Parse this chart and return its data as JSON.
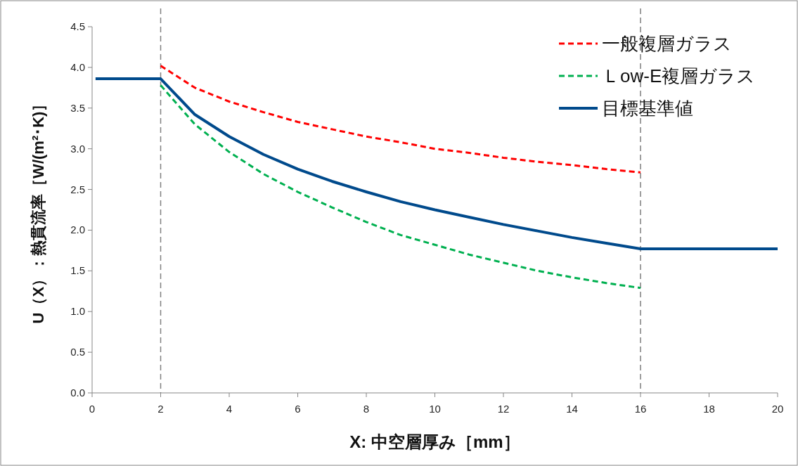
{
  "chart_data": {
    "type": "line",
    "xlabel": "X: 中空層厚み［mm］",
    "ylabel": "U（X）：熱貫流率［W/(m²･K)］",
    "xlim": [
      0,
      20
    ],
    "ylim": [
      0,
      4.5
    ],
    "xticks": [
      0,
      2,
      4,
      6,
      8,
      10,
      12,
      14,
      16,
      18,
      20
    ],
    "yticks": [
      {
        "value": 0,
        "label": "0.0"
      },
      {
        "value": 0.5,
        "label": "0.5"
      },
      {
        "value": 1,
        "label": "1.0"
      },
      {
        "value": 1.5,
        "label": "1.5"
      },
      {
        "value": 2,
        "label": "2.0"
      },
      {
        "value": 2.5,
        "label": "2.5"
      },
      {
        "value": 3,
        "label": "3.0"
      },
      {
        "value": 3.5,
        "label": "3.5"
      },
      {
        "value": 4,
        "label": "4.0"
      },
      {
        "value": 4.5,
        "label": "4.5"
      }
    ],
    "grid": false,
    "legend": "top right",
    "marker": "none",
    "ref_lines": [
      {
        "axis": "x",
        "value": 2,
        "color": "#7f7f7f",
        "line_style": "dashed"
      },
      {
        "axis": "x",
        "value": 16,
        "color": "#7f7f7f",
        "line_style": "dashed"
      }
    ],
    "series": [
      {
        "name": "一般複層ガラス",
        "color": "#ff0000",
        "line_style": "dashed",
        "x": [
          2,
          3,
          4,
          5,
          6,
          7,
          8,
          9,
          10,
          11,
          12,
          13,
          14,
          15,
          16
        ],
        "values": [
          4.02,
          3.75,
          3.58,
          3.45,
          3.33,
          3.24,
          3.15,
          3.08,
          3.0,
          2.95,
          2.89,
          2.84,
          2.8,
          2.75,
          2.71
        ]
      },
      {
        "name": "Ｌow-E複層ガラス",
        "color": "#00b050",
        "line_style": "dashed",
        "x": [
          2,
          3,
          4,
          5,
          6,
          7,
          8,
          9,
          10,
          11,
          12,
          13,
          14,
          15,
          16
        ],
        "values": [
          3.78,
          3.3,
          2.96,
          2.69,
          2.47,
          2.28,
          2.1,
          1.94,
          1.82,
          1.7,
          1.6,
          1.5,
          1.42,
          1.35,
          1.29
        ]
      },
      {
        "name": "目標基準値",
        "color": "#004a8c",
        "line_style": "solid",
        "x": [
          0.1,
          2,
          3,
          4,
          5,
          6,
          7,
          8,
          9,
          10,
          11,
          12,
          13,
          14,
          15,
          16,
          20
        ],
        "values": [
          3.86,
          3.86,
          3.42,
          3.15,
          2.93,
          2.75,
          2.6,
          2.47,
          2.35,
          2.25,
          2.16,
          2.07,
          1.99,
          1.91,
          1.84,
          1.77,
          1.77
        ]
      }
    ]
  }
}
